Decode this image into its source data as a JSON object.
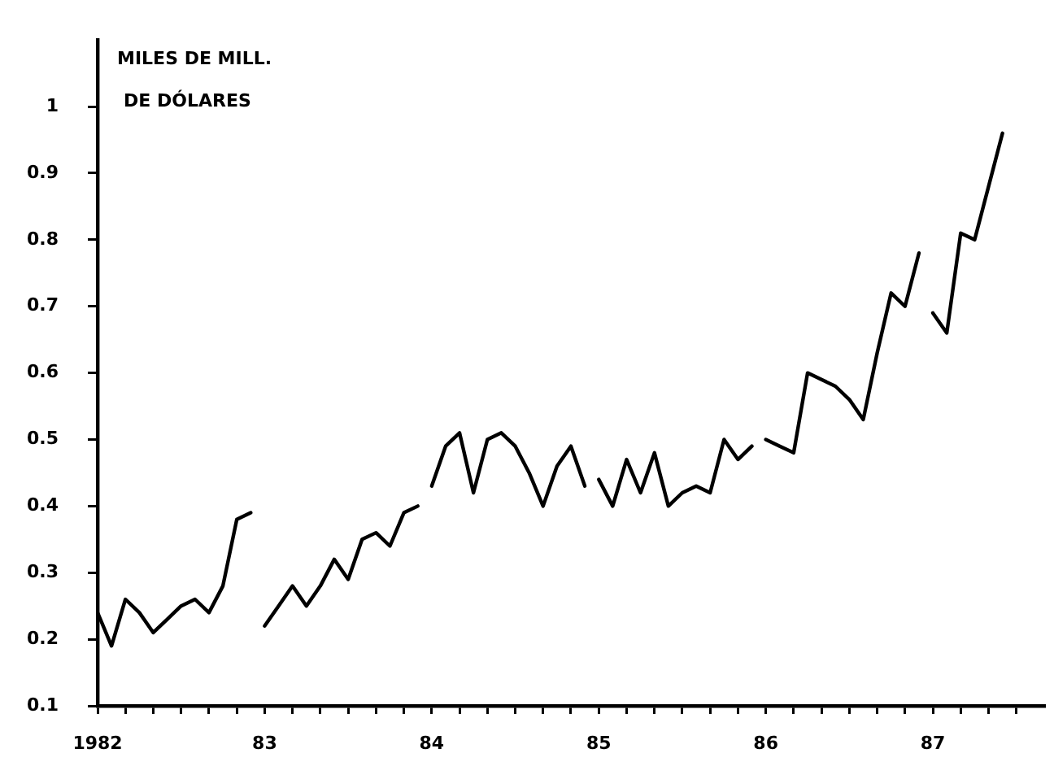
{
  "chart_data": {
    "type": "line",
    "ylabel": "MILES DE MILL.\nDE DÓLARES",
    "series": [
      {
        "color": "#000000",
        "x": [
          "1982-01",
          "1982-02",
          "1982-03",
          "1982-04",
          "1982-05",
          "1982-06",
          "1982-07",
          "1982-08",
          "1982-09",
          "1982-10",
          "1982-11",
          "1982-12"
        ],
        "values": [
          0.24,
          0.19,
          0.26,
          0.24,
          0.21,
          0.23,
          0.25,
          0.26,
          0.24,
          0.28,
          0.38,
          0.39
        ]
      },
      {
        "color": "#000000",
        "x": [
          "1983-01",
          "1983-02",
          "1983-03",
          "1983-04",
          "1983-05",
          "1983-06",
          "1983-07",
          "1983-08",
          "1983-09",
          "1983-10",
          "1983-11",
          "1983-12"
        ],
        "values": [
          0.22,
          0.25,
          0.28,
          0.25,
          0.28,
          0.32,
          0.29,
          0.35,
          0.36,
          0.34,
          0.39,
          0.4
        ]
      },
      {
        "color": "#000000",
        "x": [
          "1984-01",
          "1984-02",
          "1984-03",
          "1984-04",
          "1984-05",
          "1984-06",
          "1984-07",
          "1984-08",
          "1984-09",
          "1984-10",
          "1984-11",
          "1984-12"
        ],
        "values": [
          0.43,
          0.49,
          0.51,
          0.42,
          0.5,
          0.51,
          0.49,
          0.45,
          0.4,
          0.46,
          0.49,
          0.43
        ]
      },
      {
        "color": "#000000",
        "x": [
          "1985-01",
          "1985-02",
          "1985-03",
          "1985-04",
          "1985-05",
          "1985-06",
          "1985-07",
          "1985-08",
          "1985-09",
          "1985-10",
          "1985-11",
          "1985-12"
        ],
        "values": [
          0.44,
          0.4,
          0.47,
          0.42,
          0.48,
          0.4,
          0.42,
          0.43,
          0.42,
          0.5,
          0.47,
          0.49
        ]
      },
      {
        "color": "#000000",
        "x": [
          "1986-01",
          "1986-02",
          "1986-03",
          "1986-04",
          "1986-05",
          "1986-06",
          "1986-07",
          "1986-08",
          "1986-09",
          "1986-10",
          "1986-11",
          "1986-12"
        ],
        "values": [
          0.5,
          0.49,
          0.48,
          0.6,
          0.59,
          0.58,
          0.56,
          0.53,
          0.63,
          0.72,
          0.7,
          0.78
        ]
      },
      {
        "color": "#000000",
        "x": [
          "1987-01",
          "1987-02",
          "1987-03",
          "1987-04",
          "1987-05",
          "1987-06"
        ],
        "values": [
          0.69,
          0.66,
          0.81,
          0.8,
          0.88,
          0.96
        ]
      }
    ],
    "xlim": [
      "1982-01",
      "1987-09"
    ],
    "xticks": [
      {
        "value": "1982-01",
        "label": "1982"
      },
      {
        "value": "1982-03",
        "label": null
      },
      {
        "value": "1982-05",
        "label": null
      },
      {
        "value": "1982-07",
        "label": null
      },
      {
        "value": "1982-09",
        "label": null
      },
      {
        "value": "1982-11",
        "label": null
      },
      {
        "value": "1983-01",
        "label": "83"
      },
      {
        "value": "1983-03",
        "label": null
      },
      {
        "value": "1983-05",
        "label": null
      },
      {
        "value": "1983-07",
        "label": null
      },
      {
        "value": "1983-09",
        "label": null
      },
      {
        "value": "1983-11",
        "label": null
      },
      {
        "value": "1984-01",
        "label": "84"
      },
      {
        "value": "1984-03",
        "label": null
      },
      {
        "value": "1984-05",
        "label": null
      },
      {
        "value": "1984-07",
        "label": null
      },
      {
        "value": "1984-09",
        "label": null
      },
      {
        "value": "1984-11",
        "label": null
      },
      {
        "value": "1985-01",
        "label": "85"
      },
      {
        "value": "1985-03",
        "label": null
      },
      {
        "value": "1985-05",
        "label": null
      },
      {
        "value": "1985-07",
        "label": null
      },
      {
        "value": "1985-09",
        "label": null
      },
      {
        "value": "1985-11",
        "label": null
      },
      {
        "value": "1986-01",
        "label": "86"
      },
      {
        "value": "1986-03",
        "label": null
      },
      {
        "value": "1986-05",
        "label": null
      },
      {
        "value": "1986-07",
        "label": null
      },
      {
        "value": "1986-09",
        "label": null
      },
      {
        "value": "1986-11",
        "label": null
      },
      {
        "value": "1987-01",
        "label": "87"
      },
      {
        "value": "1987-03",
        "label": null
      },
      {
        "value": "1987-05",
        "label": null
      },
      {
        "value": "1987-07",
        "label": null
      }
    ],
    "ylim": [
      0.1,
      1.1
    ],
    "yticks": [
      0.1,
      0.2,
      0.3,
      0.4,
      0.5,
      0.6,
      0.7,
      0.8,
      0.9,
      1
    ],
    "grid": false,
    "legend": false,
    "marker": "none",
    "line_style": "solid"
  }
}
